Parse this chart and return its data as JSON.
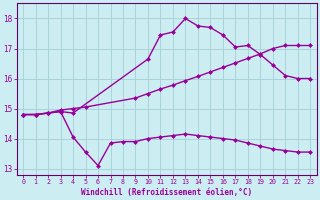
{
  "xlabel": "Windchill (Refroidissement éolien,°C)",
  "bg_color": "#cceef2",
  "grid_color": "#aad4da",
  "line_color": "#990099",
  "spine_color": "#660066",
  "xlim_min": -0.5,
  "xlim_max": 23.5,
  "ylim_min": 12.8,
  "ylim_max": 18.5,
  "yticks": [
    13,
    14,
    15,
    16,
    17,
    18
  ],
  "xticks": [
    0,
    1,
    2,
    3,
    4,
    5,
    6,
    7,
    8,
    9,
    10,
    11,
    12,
    13,
    14,
    15,
    16,
    17,
    18,
    19,
    20,
    21,
    22,
    23
  ],
  "curve1_x": [
    0,
    1,
    2,
    3,
    4,
    10,
    11,
    12,
    13,
    14,
    15,
    16,
    17,
    18,
    19,
    20,
    21,
    22,
    23
  ],
  "curve1_y": [
    14.8,
    14.8,
    14.85,
    14.9,
    14.85,
    16.65,
    17.45,
    17.55,
    18.0,
    17.75,
    17.7,
    17.45,
    17.05,
    17.1,
    16.8,
    16.45,
    16.1,
    16.0,
    16.0
  ],
  "curve2_x": [
    0,
    1,
    2,
    3,
    4,
    5,
    9,
    10,
    11,
    12,
    13,
    14,
    15,
    16,
    17,
    18,
    19,
    20,
    21,
    22,
    23
  ],
  "curve2_y": [
    14.8,
    14.8,
    14.85,
    14.95,
    15.0,
    15.05,
    15.35,
    15.5,
    15.65,
    15.78,
    15.93,
    16.07,
    16.22,
    16.37,
    16.52,
    16.67,
    16.82,
    17.0,
    17.1,
    17.1,
    17.1
  ],
  "curve3_x": [
    0,
    1,
    2,
    3,
    4,
    5,
    6,
    7,
    8,
    9,
    10,
    11,
    12,
    13,
    14,
    15,
    16,
    17,
    18,
    19,
    20,
    21,
    22,
    23
  ],
  "curve3_y": [
    14.8,
    14.8,
    14.85,
    14.9,
    14.05,
    13.55,
    13.1,
    13.85,
    13.9,
    13.9,
    14.0,
    14.05,
    14.1,
    14.15,
    14.1,
    14.05,
    14.0,
    13.95,
    13.85,
    13.75,
    13.65,
    13.6,
    13.55,
    13.55
  ]
}
